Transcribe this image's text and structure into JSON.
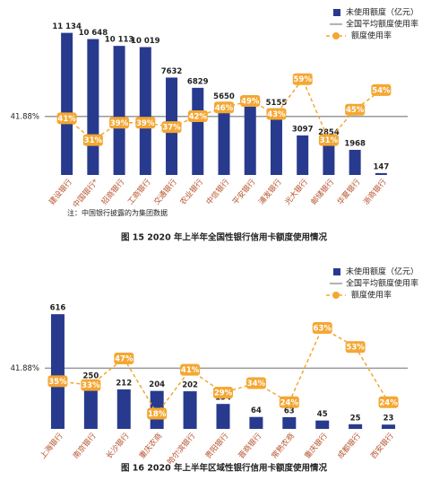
{
  "chart_data": [
    {
      "type": "bar",
      "categories": [
        "建设银行",
        "中国银行*",
        "招商银行",
        "工商银行",
        "交通银行",
        "农业银行",
        "中信银行",
        "平安银行",
        "浦发银行",
        "光大银行",
        "邮储银行",
        "华夏银行",
        "浙商银行"
      ],
      "series": [
        {
          "name": "未使用额度（亿元）",
          "type": "bar",
          "color": "#283a8e",
          "values": [
            11134,
            10648,
            10113,
            10019,
            7632,
            6829,
            5650,
            5361,
            5155,
            3097,
            2854,
            1968,
            147
          ],
          "value_labels": [
            "11 134",
            "10 648",
            "10 113",
            "10 019",
            "7632",
            "6829",
            "5650",
            "5361",
            "5155",
            "3097",
            "2854",
            "1968",
            "147"
          ]
        },
        {
          "name": "额度使用率",
          "type": "line",
          "axis": "y2",
          "color": "#f4a733",
          "values": [
            41,
            31,
            39,
            39,
            37,
            42,
            46,
            49,
            43,
            59,
            31,
            45,
            54
          ],
          "value_labels": [
            "41%",
            "31%",
            "39%",
            "39%",
            "37%",
            "42%",
            "46%",
            "49%",
            "43%",
            "59%",
            "31%",
            "45%",
            "54%"
          ]
        }
      ],
      "reference": {
        "name": "全国平均额度使用率",
        "value": 41.88,
        "label": "41.88%",
        "color": "#999999"
      },
      "ylim": [
        0,
        11600
      ],
      "y2lim": [
        15,
        83
      ],
      "note": "注：中国银行披露的为集团数据",
      "caption": "图 15  2020 年上半年全国性银行信用卡额度使用情况"
    },
    {
      "type": "bar",
      "categories": [
        "上海银行",
        "南京银行",
        "长沙银行",
        "重庆农商",
        "哈尔滨银行",
        "贵阳银行",
        "晋商银行",
        "常熟农商",
        "重庆银行",
        "成都银行",
        "西安银行"
      ],
      "series": [
        {
          "name": "未使用额度（亿元）",
          "type": "bar",
          "color": "#283a8e",
          "values": [
            616,
            250,
            212,
            204,
            202,
            134,
            64,
            63,
            45,
            25,
            23
          ]
        },
        {
          "name": "额度使用率",
          "type": "line",
          "axis": "y2",
          "color": "#f4a733",
          "values": [
            35,
            33,
            47,
            18,
            41,
            29,
            34,
            24,
            63,
            53,
            24
          ],
          "value_labels": [
            "35%",
            "33%",
            "47%",
            "18%",
            "41%",
            "29%",
            "34%",
            "24%",
            "63%",
            "53%",
            "24%"
          ]
        }
      ],
      "reference": {
        "name": "全国平均额度使用率",
        "value": 41.88,
        "label": "41.88%",
        "color": "#999999"
      },
      "ylim": [
        0,
        665
      ],
      "y2lim": [
        10,
        75
      ],
      "caption": "图 16  2020 年上半年区域性银行信用卡额度使用情况"
    }
  ]
}
